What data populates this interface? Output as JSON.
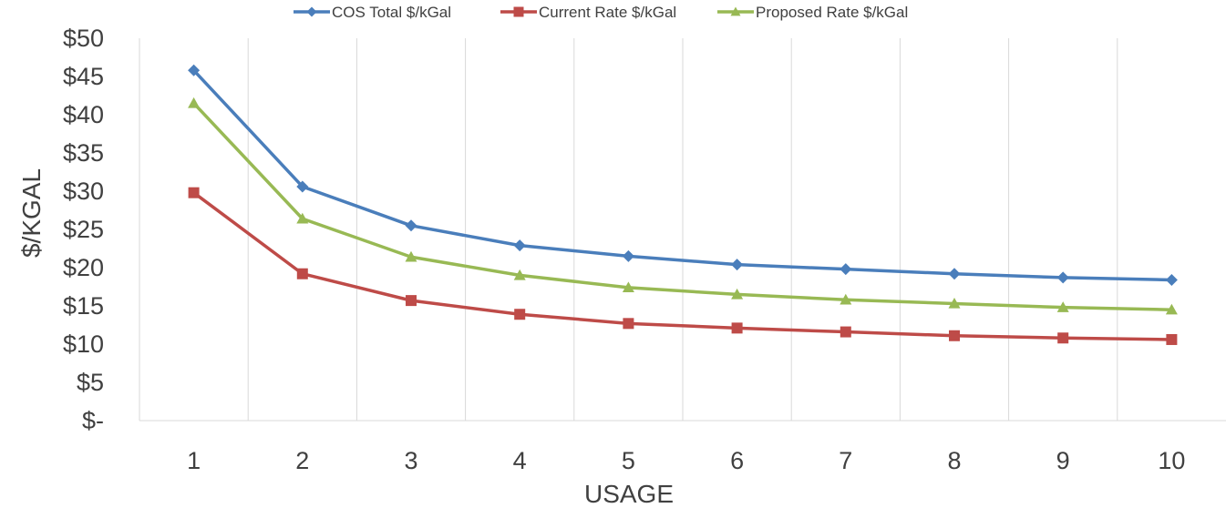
{
  "chart_data": {
    "type": "line",
    "title": "",
    "xlabel": "USAGE",
    "ylabel": "$/KGAL",
    "x": [
      1,
      2,
      3,
      4,
      5,
      6,
      7,
      8,
      9,
      10
    ],
    "y_tick_labels": [
      "$-",
      "$5",
      "$10",
      "$15",
      "$20",
      "$25",
      "$30",
      "$35",
      "$40",
      "$45",
      "$50"
    ],
    "ylim": [
      0,
      50
    ],
    "y_tick_step": 5,
    "grid": "vertical",
    "legend_position": "top",
    "series": [
      {
        "name": "COS Total $/kGal",
        "color": "#4a7ebb",
        "marker": "diamond",
        "values": [
          45.8,
          30.6,
          25.5,
          22.9,
          21.5,
          20.4,
          19.8,
          19.2,
          18.7,
          18.4
        ]
      },
      {
        "name": "Current Rate $/kGal",
        "color": "#be4b48",
        "marker": "square",
        "values": [
          29.8,
          19.2,
          15.7,
          13.9,
          12.7,
          12.1,
          11.6,
          11.1,
          10.8,
          10.6
        ]
      },
      {
        "name": "Proposed Rate $/kGal",
        "color": "#98b954",
        "marker": "triangle",
        "values": [
          41.5,
          26.4,
          21.4,
          19.0,
          17.4,
          16.5,
          15.8,
          15.3,
          14.8,
          14.5
        ]
      }
    ]
  }
}
